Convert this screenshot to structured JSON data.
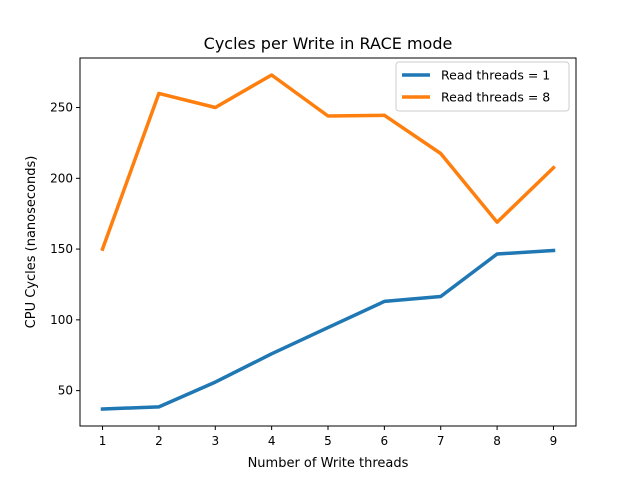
{
  "chart_data": {
    "type": "line",
    "title": "Cycles per Write in RACE mode",
    "xlabel": "Number of Write threads",
    "ylabel": "CPU Cycles (nanoseconds)",
    "x": [
      1,
      2,
      3,
      4,
      5,
      6,
      7,
      8,
      9
    ],
    "xlim": [
      0.6,
      9.4
    ],
    "ylim": [
      25,
      285
    ],
    "xticks": [
      1,
      2,
      3,
      4,
      5,
      6,
      7,
      8,
      9
    ],
    "yticks": [
      50,
      100,
      150,
      200,
      250
    ],
    "grid": false,
    "legend": "top-right",
    "series": [
      {
        "name": "Read threads = 1",
        "color": "#1f77b4",
        "values": [
          37,
          38.5,
          56,
          76,
          94.5,
          113,
          116.5,
          146.5,
          149
        ]
      },
      {
        "name": "Read threads = 8",
        "color": "#ff7f0e",
        "values": [
          150,
          260,
          250,
          273,
          244,
          244.5,
          217.5,
          169,
          207.5
        ]
      }
    ]
  }
}
